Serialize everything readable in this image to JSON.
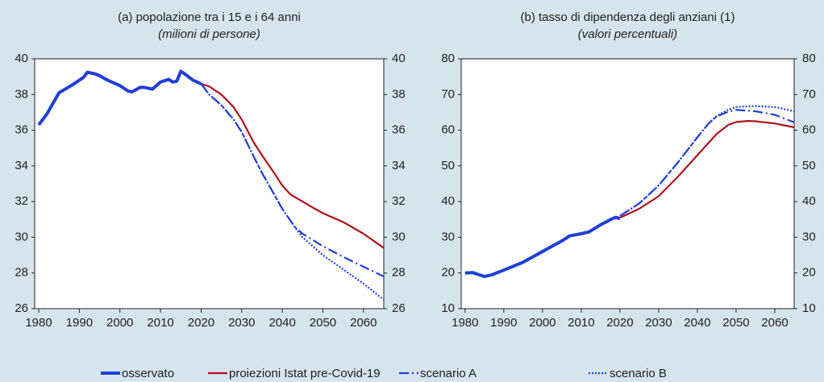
{
  "chart_data": [
    {
      "type": "line",
      "title": "(a) popolazione tra i 15 e i 64 anni",
      "subtitle": "(milioni di persone)",
      "xlim": [
        1979,
        2065
      ],
      "xticks": [
        1980,
        1990,
        2000,
        2010,
        2020,
        2030,
        2040,
        2050,
        2060
      ],
      "ylim": [
        26,
        40
      ],
      "yticks": [
        26,
        28,
        30,
        32,
        34,
        36,
        38,
        40
      ],
      "y2lim": [
        26,
        40
      ],
      "y2ticks": [
        26,
        28,
        30,
        32,
        34,
        36,
        38,
        40
      ],
      "series": [
        {
          "name": "osservato",
          "color": "#1f3fd8",
          "style": "solid",
          "linewidth": 4,
          "x": [
            1980,
            1982,
            1985,
            1988,
            1990,
            1991,
            1992,
            1994,
            1995,
            1997,
            2000,
            2002,
            2003,
            2005,
            2006,
            2008,
            2010,
            2012,
            2013,
            2014,
            2015,
            2016,
            2018,
            2020
          ],
          "values": [
            36.3,
            36.9,
            38.1,
            38.5,
            38.8,
            38.95,
            39.25,
            39.15,
            39.05,
            38.8,
            38.5,
            38.2,
            38.15,
            38.4,
            38.4,
            38.3,
            38.7,
            38.85,
            38.7,
            38.75,
            39.3,
            39.15,
            38.8,
            38.6
          ]
        },
        {
          "name": "proiezioni Istat pre-Covid-19",
          "color": "#b0101e",
          "style": "solid",
          "linewidth": 2.2,
          "x": [
            2020,
            2022,
            2025,
            2028,
            2030,
            2033,
            2035,
            2038,
            2040,
            2042,
            2045,
            2048,
            2050,
            2055,
            2060,
            2065
          ],
          "values": [
            38.6,
            38.45,
            38.0,
            37.3,
            36.6,
            35.3,
            34.6,
            33.6,
            32.9,
            32.4,
            32.0,
            31.6,
            31.35,
            30.85,
            30.2,
            29.4
          ]
        },
        {
          "name": "scenario A",
          "color": "#1f3fd8",
          "style": "dashdot",
          "linewidth": 2.2,
          "x": [
            2020,
            2022,
            2025,
            2028,
            2030,
            2033,
            2035,
            2038,
            2040,
            2043,
            2045,
            2050,
            2055,
            2060,
            2065
          ],
          "values": [
            38.6,
            38.0,
            37.4,
            36.6,
            35.9,
            34.5,
            33.6,
            32.4,
            31.6,
            30.6,
            30.2,
            29.5,
            28.9,
            28.35,
            27.8
          ]
        },
        {
          "name": "scenario B",
          "color": "#1f3fd8",
          "style": "dotted",
          "linewidth": 2.2,
          "x": [
            2020,
            2022,
            2025,
            2028,
            2030,
            2033,
            2035,
            2038,
            2040,
            2043,
            2045,
            2050,
            2055,
            2060,
            2065
          ],
          "values": [
            38.6,
            38.0,
            37.4,
            36.6,
            35.9,
            34.5,
            33.6,
            32.4,
            31.6,
            30.6,
            30.0,
            29.0,
            28.2,
            27.4,
            26.5
          ]
        }
      ]
    },
    {
      "type": "line",
      "title": "(b) tasso di dipendenza degli anziani (1)",
      "subtitle": "(valori percentuali)",
      "xlim": [
        1979,
        2065
      ],
      "xticks": [
        1980,
        1990,
        2000,
        2010,
        2020,
        2030,
        2040,
        2050,
        2060
      ],
      "ylim": [
        10,
        80
      ],
      "yticks": [
        10,
        20,
        30,
        40,
        50,
        60,
        70,
        80
      ],
      "y2lim": [
        10,
        80
      ],
      "y2ticks": [
        10,
        20,
        30,
        40,
        50,
        60,
        70,
        80
      ],
      "series": [
        {
          "name": "osservato",
          "color": "#1f3fd8",
          "style": "solid",
          "linewidth": 4,
          "x": [
            1980,
            1982,
            1985,
            1987,
            1990,
            1995,
            2000,
            2005,
            2007,
            2010,
            2012,
            2015,
            2018,
            2019,
            2020
          ],
          "values": [
            20,
            20.1,
            19,
            19.5,
            20.8,
            23,
            26,
            29,
            30.4,
            31,
            31.5,
            33.5,
            35.2,
            35.6,
            35.2
          ]
        },
        {
          "name": "proiezioni Istat pre-Covid-19",
          "color": "#b0101e",
          "style": "solid",
          "linewidth": 2.2,
          "x": [
            2020,
            2025,
            2030,
            2035,
            2040,
            2045,
            2048,
            2050,
            2053,
            2055,
            2060,
            2065
          ],
          "values": [
            35.5,
            38,
            41.5,
            47,
            53,
            59,
            61.5,
            62.3,
            62.6,
            62.5,
            61.9,
            60.8
          ]
        },
        {
          "name": "scenario A",
          "color": "#1f3fd8",
          "style": "dashdot",
          "linewidth": 2.2,
          "x": [
            2020,
            2025,
            2030,
            2035,
            2040,
            2043,
            2045,
            2048,
            2050,
            2055,
            2060,
            2065
          ],
          "values": [
            36,
            39.5,
            44.5,
            51,
            58,
            62,
            63.8,
            65.2,
            65.7,
            65.3,
            64.3,
            62.2
          ]
        },
        {
          "name": "scenario B",
          "color": "#1f3fd8",
          "style": "dotted",
          "linewidth": 2.2,
          "x": [
            2020,
            2025,
            2030,
            2035,
            2040,
            2043,
            2045,
            2048,
            2050,
            2055,
            2060,
            2065
          ],
          "values": [
            36,
            39.5,
            44.5,
            51,
            58,
            62,
            64,
            65.8,
            66.5,
            66.8,
            66.5,
            65.3
          ]
        }
      ]
    }
  ]
}
